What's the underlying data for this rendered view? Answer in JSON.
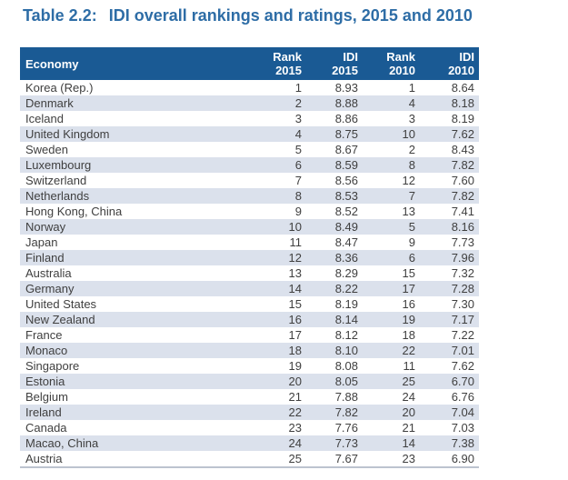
{
  "page": {
    "title_prefix": "Table 2.2:",
    "title_text": "IDI overall rankings and ratings, 2015 and 2010"
  },
  "colors": {
    "title_text": "#2e6da6",
    "header_bg": "#1a5a94",
    "header_text": "#ffffff",
    "row_alt_bg": "#dbe1ec",
    "body_text": "#3f3f3f",
    "bottom_border": "#bcc3cf"
  },
  "table": {
    "columns": [
      "Economy",
      "Rank\n2015",
      "IDI\n2015",
      "Rank\n2010",
      "IDI\n2010"
    ],
    "rows": [
      [
        "Korea (Rep.)",
        "1",
        "8.93",
        "1",
        "8.64"
      ],
      [
        "Denmark",
        "2",
        "8.88",
        "4",
        "8.18"
      ],
      [
        "Iceland",
        "3",
        "8.86",
        "3",
        "8.19"
      ],
      [
        "United Kingdom",
        "4",
        "8.75",
        "10",
        "7.62"
      ],
      [
        "Sweden",
        "5",
        "8.67",
        "2",
        "8.43"
      ],
      [
        "Luxembourg",
        "6",
        "8.59",
        "8",
        "7.82"
      ],
      [
        "Switzerland",
        "7",
        "8.56",
        "12",
        "7.60"
      ],
      [
        "Netherlands",
        "8",
        "8.53",
        "7",
        "7.82"
      ],
      [
        "Hong Kong, China",
        "9",
        "8.52",
        "13",
        "7.41"
      ],
      [
        "Norway",
        "10",
        "8.49",
        "5",
        "8.16"
      ],
      [
        "Japan",
        "11",
        "8.47",
        "9",
        "7.73"
      ],
      [
        "Finland",
        "12",
        "8.36",
        "6",
        "7.96"
      ],
      [
        "Australia",
        "13",
        "8.29",
        "15",
        "7.32"
      ],
      [
        "Germany",
        "14",
        "8.22",
        "17",
        "7.28"
      ],
      [
        "United States",
        "15",
        "8.19",
        "16",
        "7.30"
      ],
      [
        "New Zealand",
        "16",
        "8.14",
        "19",
        "7.17"
      ],
      [
        "France",
        "17",
        "8.12",
        "18",
        "7.22"
      ],
      [
        "Monaco",
        "18",
        "8.10",
        "22",
        "7.01"
      ],
      [
        "Singapore",
        "19",
        "8.08",
        "11",
        "7.62"
      ],
      [
        "Estonia",
        "20",
        "8.05",
        "25",
        "6.70"
      ],
      [
        "Belgium",
        "21",
        "7.88",
        "24",
        "6.76"
      ],
      [
        "Ireland",
        "22",
        "7.82",
        "20",
        "7.04"
      ],
      [
        "Canada",
        "23",
        "7.76",
        "21",
        "7.03"
      ],
      [
        "Macao, China",
        "24",
        "7.73",
        "14",
        "7.38"
      ],
      [
        "Austria",
        "25",
        "7.67",
        "23",
        "6.90"
      ]
    ]
  }
}
